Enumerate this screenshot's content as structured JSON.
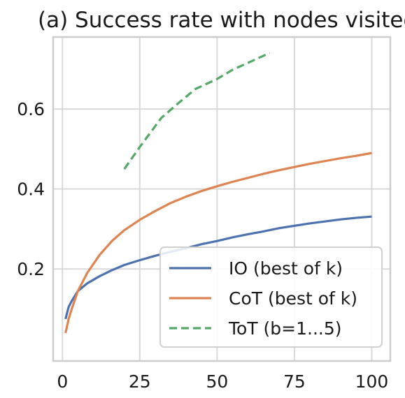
{
  "chart_data": {
    "type": "line",
    "title": "(a) Success rate with nodes visited",
    "xlabel": "",
    "ylabel": "",
    "xlim": [
      -3,
      106
    ],
    "ylim": [
      -0.03,
      0.78
    ],
    "xticks": [
      0,
      25,
      50,
      75,
      100
    ],
    "xtick_labels": [
      "0",
      "25",
      "50",
      "75",
      "100"
    ],
    "yticks": [
      0.2,
      0.4,
      0.6
    ],
    "ytick_labels": [
      "0.2",
      "0.4",
      "0.6"
    ],
    "grid": true,
    "legend_position": "lower-right",
    "series": [
      {
        "name": "IO (best of k)",
        "color": "#4c72b0",
        "dash": "solid",
        "x": [
          1,
          2,
          3,
          5,
          8,
          12,
          16,
          20,
          25,
          30,
          35,
          40,
          45,
          50,
          55,
          60,
          65,
          70,
          75,
          80,
          85,
          90,
          95,
          100
        ],
        "y": [
          0.075,
          0.105,
          0.12,
          0.145,
          0.164,
          0.182,
          0.197,
          0.21,
          0.222,
          0.233,
          0.243,
          0.252,
          0.262,
          0.27,
          0.279,
          0.287,
          0.294,
          0.302,
          0.308,
          0.314,
          0.319,
          0.324,
          0.328,
          0.331
        ]
      },
      {
        "name": "CoT (best of k)",
        "color": "#dd8452",
        "dash": "solid",
        "x": [
          1,
          2,
          3,
          5,
          8,
          12,
          16,
          20,
          25,
          30,
          35,
          40,
          45,
          50,
          55,
          60,
          65,
          70,
          75,
          80,
          85,
          90,
          95,
          100
        ],
        "y": [
          0.04,
          0.075,
          0.1,
          0.145,
          0.19,
          0.235,
          0.27,
          0.297,
          0.323,
          0.345,
          0.365,
          0.381,
          0.395,
          0.407,
          0.418,
          0.428,
          0.438,
          0.447,
          0.455,
          0.463,
          0.47,
          0.477,
          0.483,
          0.49
        ]
      },
      {
        "name": "ToT (b=1...5)",
        "color": "#55a868",
        "dash": "dashed",
        "x": [
          20,
          25,
          32,
          38,
          43,
          50,
          55,
          61,
          67
        ],
        "y": [
          0.45,
          0.505,
          0.578,
          0.618,
          0.65,
          0.675,
          0.698,
          0.719,
          0.74
        ]
      }
    ]
  }
}
